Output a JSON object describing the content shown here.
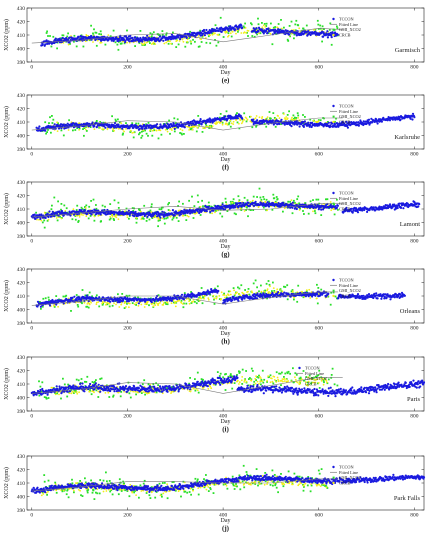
{
  "figure": {
    "panel_labels": [
      "(e)",
      "(f)",
      "(g)",
      "(h)",
      "(i)",
      "(j)"
    ]
  },
  "colors": {
    "tccon": "#1a1adf",
    "fitted": "#7a7a7a",
    "gml": "#2adf2a",
    "crcb": "#f2ef18",
    "axis": "#222222"
  },
  "chart_data": [
    {
      "type": "scatter",
      "site": "Garmisch",
      "panel_label": "(e)",
      "xlabel": "Day",
      "ylabel": "XCO2 (ppm)",
      "xlim": [
        -10,
        820
      ],
      "ylim": [
        390,
        430
      ],
      "xticks": [
        0,
        200,
        400,
        600,
        800
      ],
      "yticks": [
        390,
        400,
        410,
        420,
        430
      ],
      "legend": [
        "TCCON",
        "Fitted Line",
        "GMI_XCO2",
        "CRCB"
      ],
      "legend_position": "right",
      "grid": false,
      "series": [
        {
          "name": "TCCON",
          "kind": "points",
          "segments": [
            [
              20,
              440,
              403,
              414
            ],
            [
              460,
              640,
              411,
              413
            ]
          ],
          "spread": 3
        },
        {
          "name": "Fitted Line",
          "kind": "line",
          "x": [
            0,
            100,
            200,
            300,
            400,
            500,
            600,
            650
          ],
          "y": [
            404,
            406,
            410,
            411,
            405,
            410,
            415,
            414
          ]
        },
        {
          "name": "GMI_XCO2",
          "kind": "points",
          "segments": [
            [
              30,
              640,
              404,
              415
            ]
          ],
          "spread": 12,
          "density": 0.35
        },
        {
          "name": "CRCB",
          "kind": "points",
          "segments": [
            [
              60,
              620,
              404,
              414
            ]
          ],
          "spread": 5,
          "density": 0.45
        }
      ]
    },
    {
      "type": "scatter",
      "site": "Karlsruhe",
      "panel_label": "(f)",
      "xlabel": "Day",
      "ylabel": "XCO2 (ppm)",
      "xlim": [
        -10,
        820
      ],
      "ylim": [
        390,
        430
      ],
      "xticks": [
        0,
        200,
        400,
        600,
        800
      ],
      "yticks": [
        390,
        400,
        410,
        420,
        430
      ],
      "legend": [
        "TCCON",
        "Fitted Line",
        "GMI_XCO2",
        "CRCB"
      ],
      "legend_position": "right",
      "grid": false,
      "series": [
        {
          "name": "TCCON",
          "kind": "points",
          "segments": [
            [
              10,
              440,
              404,
              412
            ],
            [
              460,
              800,
              408,
              412
            ]
          ],
          "spread": 3
        },
        {
          "name": "Fitted Line",
          "kind": "line",
          "x": [
            0,
            100,
            200,
            300,
            400,
            500,
            600,
            650
          ],
          "y": [
            404,
            407,
            411,
            410,
            404,
            409,
            413,
            413
          ]
        },
        {
          "name": "GMI_XCO2",
          "kind": "points",
          "segments": [
            [
              20,
              640,
              404,
              413
            ]
          ],
          "spread": 11,
          "density": 0.3
        },
        {
          "name": "CRCB",
          "kind": "points",
          "segments": [
            [
              40,
              620,
              404,
              412
            ]
          ],
          "spread": 5,
          "density": 0.45
        }
      ]
    },
    {
      "type": "scatter",
      "site": "Lamont",
      "panel_label": "(g)",
      "xlabel": "Day",
      "ylabel": "XCO2 (ppm)",
      "xlim": [
        -10,
        820
      ],
      "ylim": [
        390,
        430
      ],
      "xticks": [
        0,
        200,
        400,
        600,
        800
      ],
      "yticks": [
        390,
        400,
        410,
        420,
        430
      ],
      "legend": [
        "TCCON",
        "Fitted Line",
        "GMI_XCO2",
        "CRCB"
      ],
      "legend_position": "right",
      "grid": false,
      "series": [
        {
          "name": "TCCON",
          "kind": "points",
          "segments": [
            [
              0,
              640,
              404,
              414
            ],
            [
              650,
              810,
              411,
              411
            ]
          ],
          "spread": 3
        },
        {
          "name": "Fitted Line",
          "kind": "line",
          "x": [
            0,
            100,
            200,
            300,
            400,
            500,
            600,
            650
          ],
          "y": [
            404,
            407,
            410,
            412,
            409,
            410,
            414,
            414
          ]
        },
        {
          "name": "GMI_XCO2",
          "kind": "points",
          "segments": [
            [
              0,
              640,
              404,
              415
            ]
          ],
          "spread": 13,
          "density": 0.45
        },
        {
          "name": "CRCB",
          "kind": "points",
          "segments": [
            [
              10,
              630,
              403,
              414
            ]
          ],
          "spread": 5,
          "density": 0.55
        }
      ]
    },
    {
      "type": "scatter",
      "site": "Orleans",
      "panel_label": "(h)",
      "xlabel": "Day",
      "ylabel": "XCO2 (ppm)",
      "xlim": [
        -10,
        820
      ],
      "ylim": [
        390,
        430
      ],
      "xticks": [
        0,
        200,
        400,
        600,
        800
      ],
      "yticks": [
        390,
        400,
        410,
        420,
        430
      ],
      "legend": [
        "TCCON",
        "Fitted Line",
        "GMI_XCO2",
        "CRCB"
      ],
      "legend_position": "right",
      "grid": false,
      "series": [
        {
          "name": "TCCON",
          "kind": "points",
          "segments": [
            [
              10,
              390,
              403,
              413
            ],
            [
              400,
              620,
              405,
              414
            ],
            [
              640,
              780,
              412,
              409
            ]
          ],
          "spread": 3
        },
        {
          "name": "Fitted Line",
          "kind": "line",
          "x": [
            0,
            100,
            200,
            300,
            400,
            500,
            600,
            640
          ],
          "y": [
            403,
            406,
            410,
            410,
            404,
            409,
            413,
            413
          ]
        },
        {
          "name": "GMI_XCO2",
          "kind": "points",
          "segments": [
            [
              10,
              640,
              404,
              414
            ]
          ],
          "spread": 11,
          "density": 0.3
        },
        {
          "name": "CRCB",
          "kind": "points",
          "segments": [
            [
              40,
              620,
              403,
              413
            ]
          ],
          "spread": 5,
          "density": 0.45
        }
      ]
    },
    {
      "type": "scatter",
      "site": "Paris",
      "panel_label": "(i)",
      "xlabel": "Day",
      "ylabel": "XCO2 (ppm)",
      "xlim": [
        -10,
        820
      ],
      "ylim": [
        390,
        430
      ],
      "xticks": [
        0,
        200,
        400,
        600,
        800
      ],
      "yticks": [
        390,
        400,
        410,
        420,
        430
      ],
      "legend": [
        "TCCON",
        "Fitted Line",
        "GMI_XCO2",
        "CRCB"
      ],
      "legend_position": "center",
      "grid": false,
      "series": [
        {
          "name": "TCCON",
          "kind": "points",
          "segments": [
            [
              0,
              430,
              403,
              412
            ],
            [
              430,
              820,
              404,
              408
            ]
          ],
          "spread": 4
        },
        {
          "name": "Fitted Line",
          "kind": "line",
          "x": [
            0,
            100,
            200,
            300,
            400,
            500,
            600,
            650
          ],
          "y": [
            403,
            406,
            411,
            410,
            403,
            409,
            415,
            415
          ]
        },
        {
          "name": "GMI_XCO2",
          "kind": "points",
          "segments": [
            [
              10,
              640,
              404,
              415
            ]
          ],
          "spread": 12,
          "density": 0.35
        },
        {
          "name": "CRCB",
          "kind": "points",
          "segments": [
            [
              40,
              620,
              403,
              414
            ]
          ],
          "spread": 5,
          "density": 0.45
        }
      ]
    },
    {
      "type": "scatter",
      "site": "Park Falls",
      "panel_label": "(j)",
      "xlabel": "Day",
      "ylabel": "XCO2 (ppm)",
      "xlim": [
        -10,
        820
      ],
      "ylim": [
        390,
        430
      ],
      "xticks": [
        0,
        200,
        400,
        600,
        800
      ],
      "yticks": [
        390,
        400,
        410,
        420,
        430
      ],
      "legend": [
        "TCCON",
        "Fitted Line",
        "GMI_XCO2",
        "CRCB"
      ],
      "legend_position": "right",
      "grid": false,
      "series": [
        {
          "name": "TCCON",
          "kind": "points",
          "segments": [
            [
              0,
              630,
              404,
              414
            ],
            [
              630,
              820,
              414,
              412
            ]
          ],
          "spread": 3
        },
        {
          "name": "Fitted Line",
          "kind": "line",
          "x": [
            0,
            100,
            200,
            300,
            400,
            500,
            600,
            640
          ],
          "y": [
            404,
            407,
            411,
            411,
            410,
            410,
            413,
            413
          ]
        },
        {
          "name": "GMI_XCO2",
          "kind": "points",
          "segments": [
            [
              20,
              620,
              404,
              413
            ]
          ],
          "spread": 13,
          "density": 0.45
        },
        {
          "name": "CRCB",
          "kind": "points",
          "segments": [
            [
              20,
              620,
              404,
              412
            ]
          ],
          "spread": 5,
          "density": 0.5
        }
      ]
    }
  ]
}
